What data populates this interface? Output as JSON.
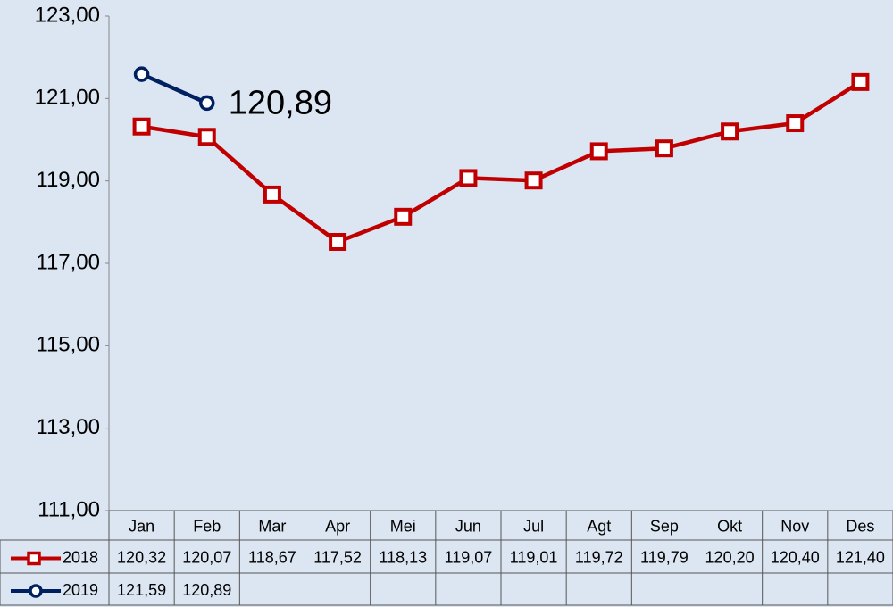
{
  "chart_data": {
    "type": "line",
    "categories": [
      "Jan",
      "Feb",
      "Mar",
      "Apr",
      "Mei",
      "Jun",
      "Jul",
      "Agt",
      "Sep",
      "Okt",
      "Nov",
      "Des"
    ],
    "series": [
      {
        "name": "2018",
        "color": "#c00000",
        "marker": "square",
        "values": [
          120.32,
          120.07,
          118.67,
          117.52,
          118.13,
          119.07,
          119.01,
          119.72,
          119.79,
          120.2,
          120.4,
          121.4
        ],
        "value_labels": [
          "120,32",
          "120,07",
          "118,67",
          "117,52",
          "118,13",
          "119,07",
          "119,01",
          "119,72",
          "119,79",
          "120,20",
          "120,40",
          "121,40"
        ]
      },
      {
        "name": "2019",
        "color": "#002060",
        "marker": "circle",
        "values": [
          121.59,
          120.89,
          null,
          null,
          null,
          null,
          null,
          null,
          null,
          null,
          null,
          null
        ],
        "value_labels": [
          "121,59",
          "120,89",
          null,
          null,
          null,
          null,
          null,
          null,
          null,
          null,
          null,
          null
        ]
      }
    ],
    "annotation_point": {
      "series": 1,
      "index": 1
    },
    "ylim": [
      111,
      123
    ],
    "yticks": [
      {
        "value": 111,
        "label": "111,00"
      },
      {
        "value": 113,
        "label": "113,00"
      },
      {
        "value": 115,
        "label": "115,00"
      },
      {
        "value": 117,
        "label": "117,00"
      },
      {
        "value": 119,
        "label": "119,00"
      },
      {
        "value": 121,
        "label": "121,00"
      },
      {
        "value": 123,
        "label": "123,00"
      }
    ],
    "grid": false
  }
}
